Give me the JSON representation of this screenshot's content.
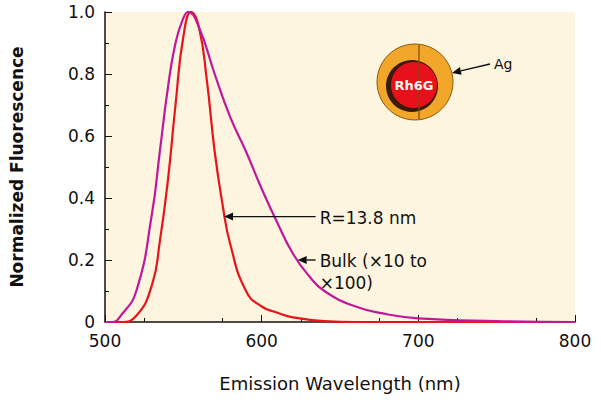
{
  "chart_data": {
    "type": "line",
    "x_label": "Emission Wavelength (nm)",
    "y_label": "Normalized Fluorescence",
    "xlim": [
      500,
      800
    ],
    "xticks": [
      500,
      600,
      700,
      800
    ],
    "ylim": [
      0,
      1
    ],
    "yticks": [
      0,
      0.2,
      0.4,
      0.6,
      0.8,
      {
        "value": 1,
        "label": "1.0"
      }
    ],
    "grid": false,
    "series": [
      {
        "name": "R=13.8 nm",
        "color": "#e8141c",
        "x": [
          500,
          510,
          520,
          530,
          535,
          540,
          545,
          550,
          555,
          560,
          565,
          570,
          575,
          580,
          590,
          600,
          610,
          620,
          640,
          660,
          700,
          800
        ],
        "values": [
          0,
          0,
          0.02,
          0.12,
          0.26,
          0.45,
          0.7,
          0.92,
          1.0,
          0.95,
          0.78,
          0.55,
          0.38,
          0.25,
          0.1,
          0.05,
          0.03,
          0.015,
          0.003,
          0,
          0,
          0
        ]
      },
      {
        "name": "Bulk (×10 to\n×100)",
        "color": "#c0189a",
        "x": [
          500,
          505,
          510,
          520,
          530,
          535,
          540,
          545,
          550,
          553,
          560,
          570,
          580,
          590,
          600,
          610,
          620,
          630,
          640,
          660,
          680,
          700,
          750,
          800
        ],
        "values": [
          0,
          0,
          0.02,
          0.1,
          0.35,
          0.55,
          0.75,
          0.9,
          0.98,
          1.0,
          0.95,
          0.8,
          0.66,
          0.55,
          0.43,
          0.32,
          0.22,
          0.15,
          0.1,
          0.05,
          0.025,
          0.012,
          0.003,
          0
        ]
      }
    ],
    "annotations": [
      {
        "text": "R=13.8 nm",
        "x": 637,
        "y": 0.34,
        "arrow_to": [
          576,
          0.34
        ]
      },
      {
        "text": "Bulk (×10 to\n×100)",
        "x": 637,
        "y": 0.2,
        "arrow_to": [
          623,
          0.2
        ]
      }
    ],
    "inset": {
      "core": "Rh6G",
      "shell": "Ag"
    }
  }
}
